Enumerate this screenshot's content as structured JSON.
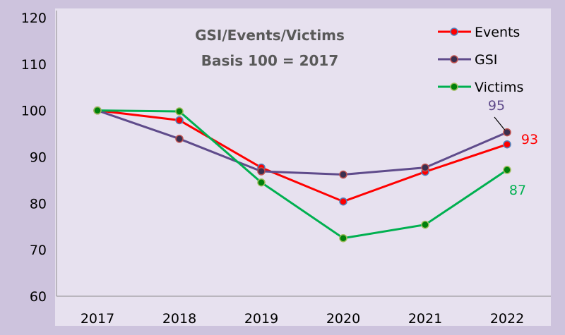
{
  "chart_data": {
    "type": "line",
    "title": "GSI/Events/Victims",
    "subtitle": "Basis 100 = 2017",
    "xlabel": "",
    "ylabel": "",
    "categories": [
      "2017",
      "2018",
      "2019",
      "2020",
      "2021",
      "2022"
    ],
    "ylim": [
      60,
      120
    ],
    "yticks": [
      60,
      70,
      80,
      90,
      100,
      110,
      120
    ],
    "grid": false,
    "legend_position": "top-right",
    "series": [
      {
        "name": "Events",
        "values": [
          100,
          97.9,
          87.7,
          80.4,
          86.8,
          92.7
        ],
        "color": "#ff0000",
        "marker": "#ff0000",
        "marker_edge": "#4f81bd",
        "end_label": "93"
      },
      {
        "name": "GSI",
        "values": [
          100,
          93.9,
          86.9,
          86.2,
          87.7,
          95.3
        ],
        "color": "#5f4b8b",
        "marker": "#3a2f4f",
        "marker_edge": "#c0504d",
        "end_label": "95"
      },
      {
        "name": "Victims",
        "values": [
          100,
          99.8,
          84.5,
          72.5,
          75.4,
          87.2
        ],
        "color": "#00b050",
        "marker": "#00800a",
        "marker_edge": "#9bbb59",
        "end_label": "87"
      }
    ]
  },
  "colors": {
    "background": "#cdc3dd",
    "plot_area": "#e7e1ef",
    "axis": "#8c8c8c"
  }
}
